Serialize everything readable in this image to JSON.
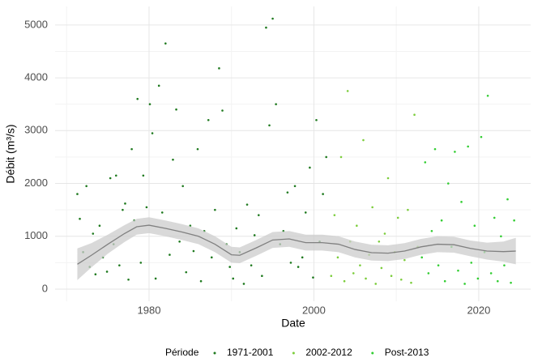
{
  "chart_data": {
    "type": "scatter",
    "x_label": "Date",
    "y_label": "Débit (m³/s)",
    "xlim": [
      1968.6,
      2026.3
    ],
    "ylim": [
      -230,
      5350
    ],
    "xticks": [
      1980,
      2000,
      2020
    ],
    "yticks": [
      0,
      1000,
      2000,
      3000,
      4000,
      5000
    ],
    "x_minor_ticks": [
      1970,
      1990,
      2010
    ],
    "y_minor_ticks": [
      500,
      1500,
      2500,
      3500,
      4500
    ],
    "grid": true,
    "legend_title": "Période",
    "legend_position": "bottom",
    "series": [
      {
        "name": "1971-2001",
        "color": "#1f7a1f",
        "x": [
          1971.3,
          1971.6,
          1972.0,
          1972.4,
          1972.8,
          1973.2,
          1973.5,
          1974.0,
          1974.4,
          1974.9,
          1975.3,
          1975.7,
          1976.0,
          1976.4,
          1976.8,
          1977.1,
          1977.5,
          1977.9,
          1978.2,
          1978.6,
          1979.0,
          1979.3,
          1979.7,
          1980.1,
          1980.4,
          1980.8,
          1981.2,
          1981.6,
          1982.0,
          1982.5,
          1982.9,
          1983.3,
          1983.7,
          1984.1,
          1984.5,
          1985.0,
          1985.4,
          1985.9,
          1986.3,
          1986.7,
          1987.2,
          1987.6,
          1988.0,
          1988.5,
          1988.9,
          1989.4,
          1989.8,
          1990.2,
          1990.6,
          1991.0,
          1991.5,
          1991.9,
          1992.4,
          1992.8,
          1993.3,
          1993.7,
          1994.2,
          1994.6,
          1995.0,
          1995.4,
          1995.9,
          1996.3,
          1996.8,
          1997.2,
          1997.7,
          1998.1,
          1998.6,
          1999.0,
          1999.5,
          1999.9,
          2000.3,
          2000.7,
          2001.1,
          2001.5
        ],
        "y": [
          1800,
          1330,
          700,
          1950,
          420,
          1050,
          280,
          1200,
          600,
          330,
          2100,
          850,
          2150,
          450,
          1500,
          1620,
          180,
          2650,
          1300,
          3600,
          500,
          2150,
          1550,
          3500,
          2950,
          200,
          3850,
          1450,
          4650,
          650,
          2450,
          3400,
          900,
          1950,
          320,
          1200,
          720,
          2650,
          150,
          1100,
          3200,
          600,
          1500,
          4180,
          3380,
          850,
          420,
          200,
          1150,
          700,
          100,
          1600,
          450,
          1020,
          1400,
          250,
          4950,
          3100,
          5120,
          3500,
          850,
          1100,
          1830,
          500,
          1950,
          420,
          600,
          1450,
          2300,
          220,
          3200,
          900,
          1800,
          2500
        ]
      },
      {
        "name": "2002-2012",
        "color": "#7ccd3c",
        "x": [
          2002.1,
          2002.5,
          2002.9,
          2003.3,
          2003.7,
          2004.1,
          2004.4,
          2004.8,
          2005.2,
          2005.6,
          2006.0,
          2006.3,
          2006.7,
          2007.1,
          2007.5,
          2007.9,
          2008.2,
          2008.6,
          2009.0,
          2009.4,
          2009.8,
          2010.2,
          2010.6,
          2011.0,
          2011.4,
          2011.8,
          2012.2,
          2012.6
        ],
        "y": [
          250,
          1400,
          600,
          2500,
          150,
          3750,
          900,
          300,
          1200,
          450,
          2820,
          200,
          650,
          1550,
          100,
          900,
          400,
          1050,
          2100,
          250,
          700,
          1350,
          180,
          550,
          1500,
          120,
          3300,
          800
        ]
      },
      {
        "name": "Post-2013",
        "color": "#32cd32",
        "x": [
          2013.1,
          2013.5,
          2013.9,
          2014.3,
          2014.7,
          2015.1,
          2015.5,
          2015.9,
          2016.3,
          2016.7,
          2017.1,
          2017.5,
          2017.9,
          2018.3,
          2018.7,
          2019.1,
          2019.5,
          2019.9,
          2020.3,
          2020.7,
          2021.1,
          2021.5,
          2021.9,
          2022.3,
          2022.7,
          2023.1,
          2023.5,
          2023.9,
          2024.3
        ],
        "y": [
          600,
          2400,
          300,
          1100,
          2650,
          450,
          1300,
          150,
          2000,
          800,
          2600,
          350,
          1650,
          100,
          2700,
          500,
          1200,
          200,
          2880,
          700,
          3660,
          300,
          1350,
          150,
          1000,
          450,
          1700,
          120,
          1300
        ]
      }
    ],
    "smooth": {
      "color": "#808080",
      "band_color": "#cccccc",
      "x": [
        1971.3,
        1973,
        1975,
        1977,
        1978.5,
        1980,
        1982,
        1984,
        1986,
        1988,
        1990,
        1991,
        1993,
        1995,
        1997,
        1999,
        2001,
        2003,
        2005,
        2007,
        2009,
        2011,
        2013,
        2015,
        2017,
        2019,
        2021,
        2023,
        2024.5
      ],
      "y": [
        470,
        640,
        850,
        1050,
        1180,
        1210,
        1150,
        1080,
        1000,
        850,
        650,
        640,
        780,
        930,
        950,
        880,
        880,
        850,
        750,
        690,
        680,
        720,
        800,
        850,
        840,
        770,
        720,
        710,
        720
      ],
      "lower": [
        170,
        410,
        670,
        890,
        1030,
        1060,
        1000,
        930,
        850,
        700,
        500,
        490,
        630,
        780,
        800,
        730,
        730,
        700,
        600,
        540,
        530,
        570,
        650,
        700,
        690,
        620,
        560,
        520,
        470
      ],
      "upper": [
        770,
        870,
        1030,
        1210,
        1330,
        1360,
        1300,
        1230,
        1150,
        1000,
        800,
        790,
        930,
        1080,
        1100,
        1030,
        1030,
        1000,
        900,
        840,
        830,
        870,
        950,
        1000,
        990,
        920,
        880,
        900,
        970
      ]
    }
  }
}
